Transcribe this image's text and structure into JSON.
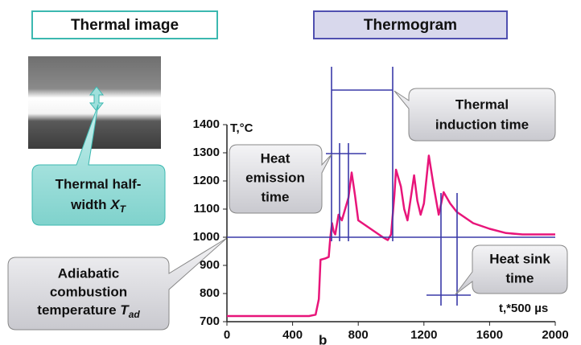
{
  "chart_data": {
    "type": "line",
    "headers": [
      "Thermal image",
      "Thermogram"
    ],
    "y_label": "T,°C",
    "x_label": "t,*500 µs",
    "panel_label": "b",
    "callouts": {
      "half_width": {
        "lines": [
          "Thermal half-",
          "width"
        ],
        "symbol": "X",
        "subscript": "T"
      },
      "adiabatic": {
        "lines": [
          "Adiabatic",
          "combustion",
          "temperature"
        ],
        "symbol": "T",
        "subscript": "ad"
      },
      "emission": {
        "lines": [
          "Heat",
          "emission",
          "time"
        ]
      },
      "induction": {
        "lines": [
          "Thermal",
          "induction time"
        ]
      },
      "sink": {
        "lines": [
          "Heat sink",
          "time"
        ]
      }
    },
    "x": [
      0,
      500,
      540,
      560,
      570,
      600,
      620,
      630,
      640,
      650,
      660,
      680,
      700,
      720,
      740,
      760,
      780,
      800,
      850,
      900,
      950,
      980,
      1000,
      1020,
      1030,
      1060,
      1080,
      1100,
      1140,
      1160,
      1180,
      1200,
      1230,
      1260,
      1290,
      1320,
      1360,
      1400,
      1500,
      1600,
      1700,
      1800,
      2000
    ],
    "series": [
      {
        "color": "#e8157a",
        "values": [
          720,
          720,
          725,
          780,
          920,
          925,
          930,
          1000,
          1050,
          1020,
          1010,
          1080,
          1060,
          1100,
          1140,
          1230,
          1150,
          1060,
          1040,
          1020,
          1000,
          990,
          1010,
          1150,
          1240,
          1180,
          1100,
          1060,
          1220,
          1130,
          1080,
          1120,
          1290,
          1180,
          1080,
          1160,
          1120,
          1090,
          1050,
          1030,
          1015,
          1010,
          1010
        ]
      }
    ],
    "xlim": [
      0,
      2000
    ],
    "ylim": [
      700,
      1400
    ],
    "xticks": [
      0,
      400,
      800,
      1200,
      1600,
      2000
    ],
    "yticks": [
      700,
      800,
      900,
      1000,
      1100,
      1200,
      1300,
      1400
    ]
  }
}
